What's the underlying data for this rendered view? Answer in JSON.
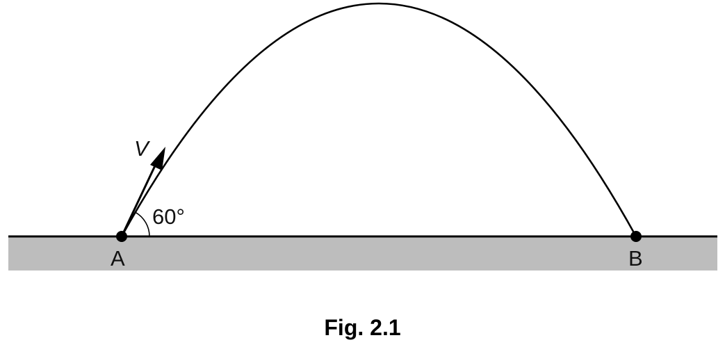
{
  "diagram": {
    "velocity_label": "V",
    "angle_label": "60°",
    "point_a_label": "A",
    "point_b_label": "B",
    "caption": "Fig. 2.1",
    "colors": {
      "ground_fill": "#bdbdbd",
      "line": "#000000",
      "background": "#ffffff"
    }
  }
}
